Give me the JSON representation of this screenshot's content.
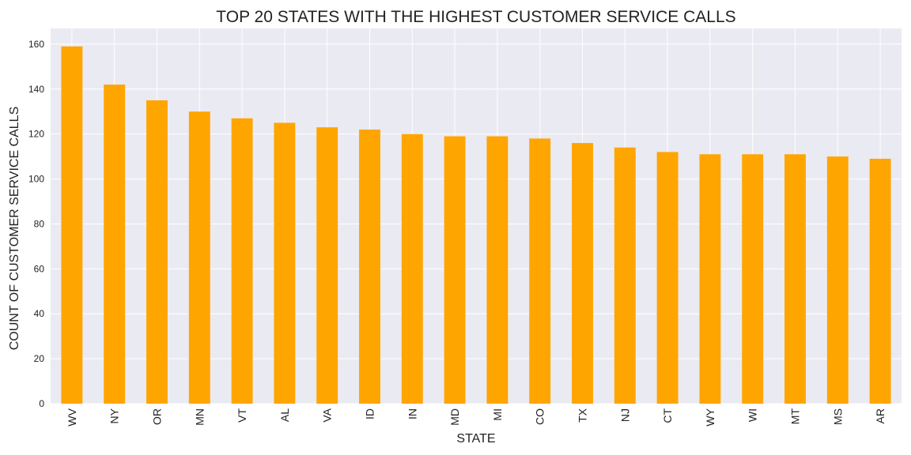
{
  "chart_data": {
    "type": "bar",
    "title": "TOP 20 STATES WITH THE HIGHEST CUSTOMER SERVICE CALLS",
    "xlabel": "STATE",
    "ylabel": "COUNT OF CUSTOMER SERVICE CALLS",
    "categories": [
      "WV",
      "NY",
      "OR",
      "MN",
      "VT",
      "AL",
      "VA",
      "ID",
      "IN",
      "MD",
      "MI",
      "CO",
      "TX",
      "NJ",
      "CT",
      "WY",
      "WI",
      "MT",
      "MS",
      "AR"
    ],
    "values": [
      159,
      142,
      135,
      130,
      127,
      125,
      123,
      122,
      120,
      119,
      119,
      118,
      116,
      114,
      112,
      111,
      111,
      111,
      110,
      109
    ],
    "ylim": [
      0,
      167
    ],
    "yticks": [
      0,
      20,
      40,
      60,
      80,
      100,
      120,
      140,
      160
    ],
    "grid": true,
    "colors": {
      "bar": "#ffa500",
      "plot_background": "#eaeaf2",
      "grid": "#ffffff"
    }
  }
}
